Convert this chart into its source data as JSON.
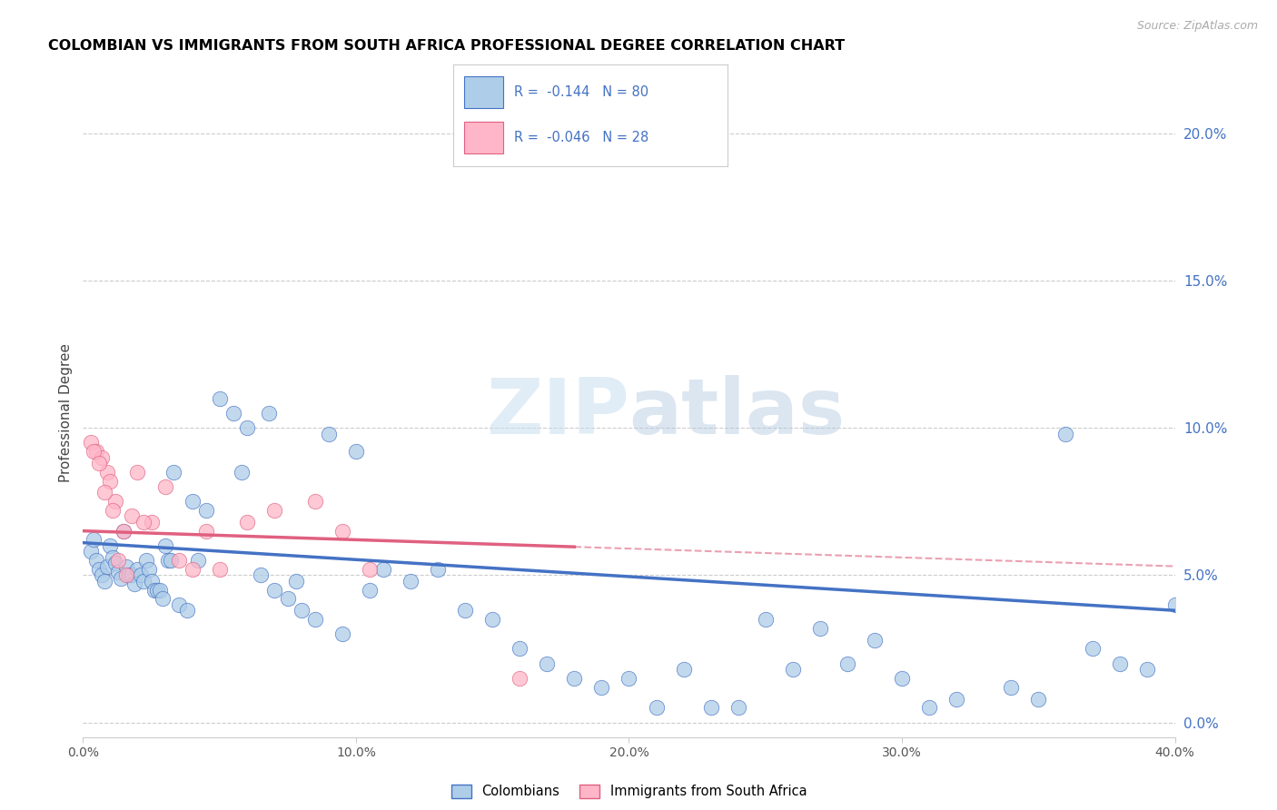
{
  "title": "COLOMBIAN VS IMMIGRANTS FROM SOUTH AFRICA PROFESSIONAL DEGREE CORRELATION CHART",
  "source": "Source: ZipAtlas.com",
  "ylabel": "Professional Degree",
  "right_ytick_vals": [
    0.0,
    5.0,
    10.0,
    15.0,
    20.0
  ],
  "xlim": [
    0.0,
    40.0
  ],
  "ylim": [
    -0.5,
    21.5
  ],
  "watermark": "ZIPatlas",
  "legend1_label": "R =  -0.144   N = 80",
  "legend2_label": "R =  -0.046   N = 28",
  "legend1_color": "#aecde8",
  "legend2_color": "#ffb6c8",
  "trendline1_color": "#4472c4",
  "trendline2_color": "#e06080",
  "legend_bottom_label1": "Colombians",
  "legend_bottom_label2": "Immigrants from South Africa",
  "background_color": "#ffffff",
  "colombians_x": [
    0.3,
    0.4,
    0.5,
    0.6,
    0.7,
    0.8,
    0.9,
    1.0,
    1.1,
    1.2,
    1.3,
    1.4,
    1.5,
    1.6,
    1.7,
    1.8,
    1.9,
    2.0,
    2.1,
    2.2,
    2.3,
    2.4,
    2.5,
    2.6,
    2.7,
    2.8,
    2.9,
    3.0,
    3.1,
    3.2,
    3.5,
    3.8,
    4.0,
    4.5,
    5.0,
    5.5,
    6.0,
    6.5,
    7.0,
    7.5,
    8.0,
    9.0,
    10.0,
    11.0,
    12.0,
    13.0,
    14.0,
    15.0,
    16.0,
    17.0,
    18.0,
    19.0,
    20.0,
    21.0,
    22.0,
    23.0,
    24.0,
    25.0,
    26.0,
    27.0,
    28.0,
    29.0,
    30.0,
    31.0,
    32.0,
    34.0,
    35.0,
    36.0,
    37.0,
    38.0,
    39.0,
    40.0,
    8.5,
    9.5,
    5.8,
    3.3,
    4.2,
    6.8,
    7.8,
    10.5
  ],
  "colombians_y": [
    5.8,
    6.2,
    5.5,
    5.2,
    5.0,
    4.8,
    5.3,
    6.0,
    5.6,
    5.4,
    5.1,
    4.9,
    6.5,
    5.3,
    5.0,
    5.0,
    4.7,
    5.2,
    5.0,
    4.8,
    5.5,
    5.2,
    4.8,
    4.5,
    4.5,
    4.5,
    4.2,
    6.0,
    5.5,
    5.5,
    4.0,
    3.8,
    7.5,
    7.2,
    11.0,
    10.5,
    10.0,
    5.0,
    4.5,
    4.2,
    3.8,
    9.8,
    9.2,
    5.2,
    4.8,
    5.2,
    3.8,
    3.5,
    2.5,
    2.0,
    1.5,
    1.2,
    1.5,
    0.5,
    1.8,
    0.5,
    0.5,
    3.5,
    1.8,
    3.2,
    2.0,
    2.8,
    1.5,
    0.5,
    0.8,
    1.2,
    0.8,
    9.8,
    2.5,
    2.0,
    1.8,
    4.0,
    3.5,
    3.0,
    8.5,
    8.5,
    5.5,
    10.5,
    4.8,
    4.5
  ],
  "sa_x": [
    0.3,
    0.5,
    0.7,
    0.9,
    1.0,
    1.2,
    1.5,
    1.8,
    2.0,
    2.5,
    3.0,
    3.5,
    4.0,
    4.5,
    5.0,
    6.0,
    7.0,
    8.5,
    9.5,
    10.5,
    16.0,
    1.3,
    1.6,
    2.2,
    0.4,
    0.6,
    0.8,
    1.1
  ],
  "sa_y": [
    9.5,
    9.2,
    9.0,
    8.5,
    8.2,
    7.5,
    6.5,
    7.0,
    8.5,
    6.8,
    8.0,
    5.5,
    5.2,
    6.5,
    5.2,
    6.8,
    7.2,
    7.5,
    6.5,
    5.2,
    1.5,
    5.5,
    5.0,
    6.8,
    9.2,
    8.8,
    7.8,
    7.2
  ],
  "trendline1_x0": 0.0,
  "trendline1_y0": 6.1,
  "trendline1_x1": 40.0,
  "trendline1_y1": 3.8,
  "trendline2_x0": 0.0,
  "trendline2_y0": 6.5,
  "trendline2_x1": 40.0,
  "trendline2_y1": 5.3,
  "trendline2_solid_end": 18.0,
  "xticks": [
    0,
    10,
    20,
    30,
    40
  ],
  "xticklabels": [
    "0.0%",
    "10.0%",
    "20.0%",
    "30.0%",
    "40.0%"
  ]
}
